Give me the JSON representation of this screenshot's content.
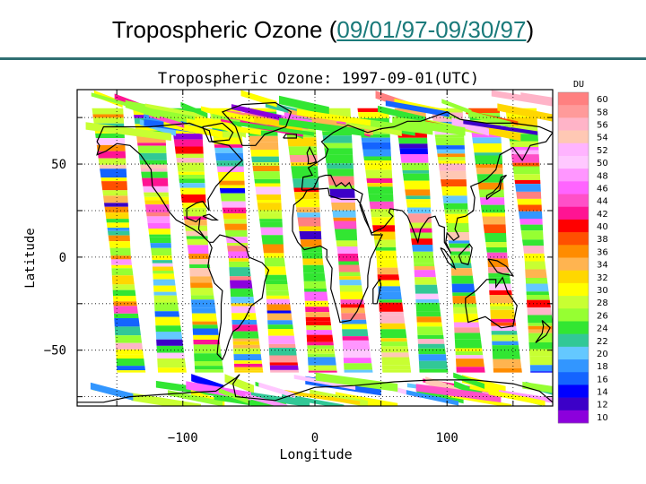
{
  "slide": {
    "title_prefix": "Tropospheric Ozone (",
    "title_link": "09/01/97-09/30/97",
    "title_suffix": ")"
  },
  "map": {
    "title": "Tropospheric Ozone: 1997-09-01(UTC)",
    "xlabel": "Longitude",
    "ylabel": "Latitude",
    "x_ticks": [
      {
        "value": -100,
        "label": "−100"
      },
      {
        "value": 0,
        "label": "0"
      },
      {
        "value": 100,
        "label": "100"
      }
    ],
    "y_ticks": [
      {
        "value": 50,
        "label": "50"
      },
      {
        "value": 0,
        "label": "0"
      },
      {
        "value": -50,
        "label": "−50"
      }
    ],
    "xlim": [
      -180,
      180
    ],
    "ylim": [
      -80,
      90
    ]
  },
  "colorbar": {
    "unit": "DU",
    "levels": [
      {
        "value": "60",
        "color": "#ff8080"
      },
      {
        "value": "58",
        "color": "#ff9a9a"
      },
      {
        "value": "56",
        "color": "#ffb4c8"
      },
      {
        "value": "54",
        "color": "#ffc8b4"
      },
      {
        "value": "52",
        "color": "#ffb4ff"
      },
      {
        "value": "50",
        "color": "#ffc8ff"
      },
      {
        "value": "48",
        "color": "#ff96ff"
      },
      {
        "value": "46",
        "color": "#ff64ff"
      },
      {
        "value": "44",
        "color": "#ff50c8"
      },
      {
        "value": "42",
        "color": "#ff1493"
      },
      {
        "value": "40",
        "color": "#ff0000"
      },
      {
        "value": "38",
        "color": "#ff5000"
      },
      {
        "value": "36",
        "color": "#ff8c00"
      },
      {
        "value": "34",
        "color": "#ffb450"
      },
      {
        "value": "32",
        "color": "#ffd700"
      },
      {
        "value": "30",
        "color": "#ffff00"
      },
      {
        "value": "28",
        "color": "#c8ff32"
      },
      {
        "value": "26",
        "color": "#96ff32"
      },
      {
        "value": "24",
        "color": "#32e632"
      },
      {
        "value": "22",
        "color": "#32c896"
      },
      {
        "value": "20",
        "color": "#64c8ff"
      },
      {
        "value": "18",
        "color": "#3296ff"
      },
      {
        "value": "16",
        "color": "#1464ff"
      },
      {
        "value": "14",
        "color": "#0000ff"
      },
      {
        "value": "12",
        "color": "#3c00c8"
      },
      {
        "value": "10",
        "color": "#8c00dc"
      }
    ]
  }
}
